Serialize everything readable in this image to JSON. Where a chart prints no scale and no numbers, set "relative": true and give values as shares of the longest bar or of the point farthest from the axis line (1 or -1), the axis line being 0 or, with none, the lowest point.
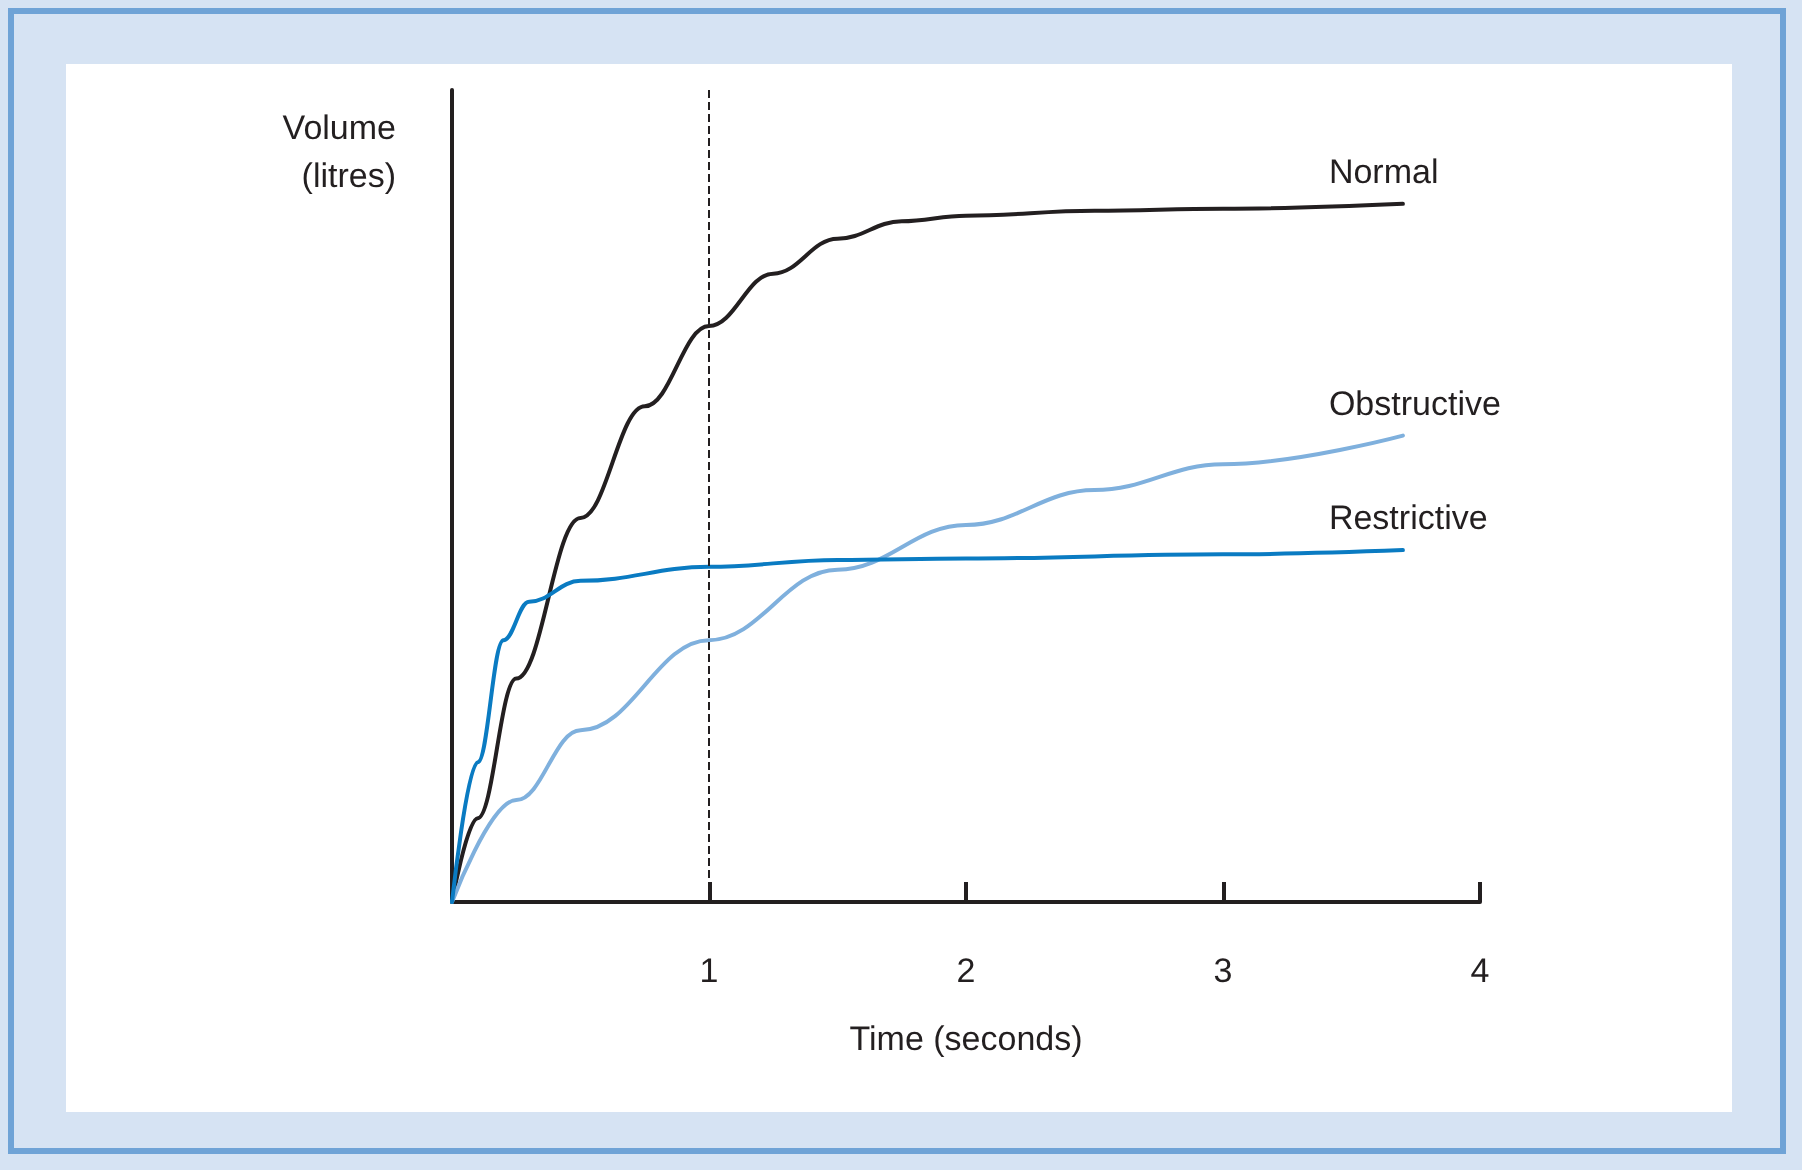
{
  "chart_data": {
    "type": "line",
    "xlabel": "Time (seconds)",
    "ylabel": "Volume (litres)",
    "relative": true,
    "xlim": [
      0,
      4
    ],
    "xticks": [
      1,
      2,
      3,
      4
    ],
    "grid": false,
    "legend": false,
    "line_style": "solid",
    "ref_lines": [
      {
        "axis": "x",
        "value": 1,
        "line_style": "dashed",
        "color": "#231f20"
      }
    ],
    "series": [
      {
        "name": "Normal",
        "color": "#231f20",
        "x": [
          0,
          0.1,
          0.25,
          0.5,
          0.75,
          1,
          1.25,
          1.5,
          1.75,
          2,
          2.5,
          3,
          3.7
        ],
        "values": [
          0,
          0.12,
          0.32,
          0.55,
          0.71,
          0.825,
          0.9,
          0.95,
          0.975,
          0.983,
          0.99,
          0.993,
          1
        ]
      },
      {
        "name": "Obstructive",
        "color": "#7fb0dd",
        "x": [
          0,
          0.25,
          0.5,
          1,
          1.5,
          2,
          2.5,
          3,
          3.7
        ],
        "values": [
          0,
          0.146,
          0.246,
          0.375,
          0.476,
          0.54,
          0.59,
          0.627,
          0.668
        ]
      },
      {
        "name": "Restrictive",
        "color": "#0a7bc2",
        "x": [
          0,
          0.1,
          0.2,
          0.3,
          0.5,
          1,
          1.5,
          2,
          3,
          3.7
        ],
        "values": [
          0,
          0.2,
          0.375,
          0.43,
          0.46,
          0.48,
          0.49,
          0.492,
          0.498,
          0.504
        ]
      }
    ]
  }
}
